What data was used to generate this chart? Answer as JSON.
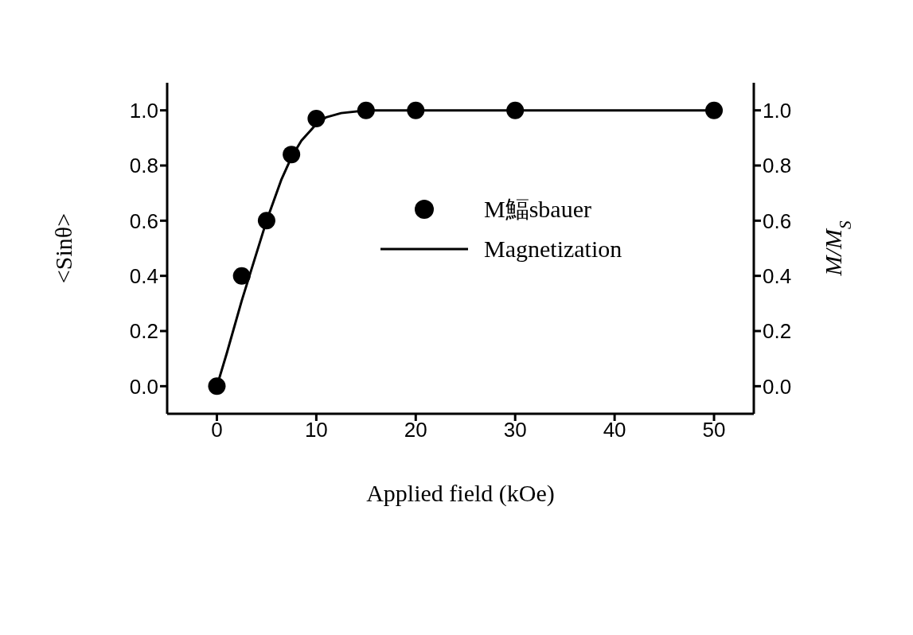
{
  "chart_data": {
    "type": "scatter",
    "xlabel": "Applied field (kOe)",
    "ylabel": "<Sinθ>",
    "y2label": "M/M$_{S}$",
    "xlim": [
      -5,
      54
    ],
    "xticks": [
      0,
      10,
      20,
      30,
      40,
      50
    ],
    "ylim": [
      -0.1,
      1.1
    ],
    "yticks": [
      {
        "value": 0,
        "label": "0.0"
      },
      0.2,
      0.4,
      0.6,
      0.8,
      {
        "value": 1,
        "label": "1.0"
      }
    ],
    "y2lim": [
      -0.1,
      1.1
    ],
    "y2ticks": [
      {
        "value": 0,
        "label": "0.0"
      },
      0.2,
      0.4,
      0.6,
      0.8,
      {
        "value": 1,
        "label": "1.0"
      }
    ],
    "legend": "top right",
    "series": [
      {
        "name": "M鰏sbauer",
        "marker": "circle",
        "color": "#000000",
        "x": [
          0,
          2.5,
          5,
          7.5,
          10,
          15,
          20,
          30,
          50
        ],
        "values": [
          0,
          0.4,
          0.6,
          0.84,
          0.97,
          1.0,
          1.0,
          1.0,
          1.0
        ]
      },
      {
        "name": "Magnetization",
        "type": "line",
        "marker": "none",
        "color": "#000000",
        "line_style": "solid",
        "x": [
          0,
          1,
          2.5,
          5,
          6.5,
          7.5,
          8.5,
          10,
          11,
          12.5,
          15,
          20,
          50
        ],
        "values": [
          0,
          0.12,
          0.31,
          0.6,
          0.75,
          0.83,
          0.89,
          0.95,
          0.975,
          0.99,
          1.0,
          1.0,
          1.0
        ]
      }
    ]
  }
}
